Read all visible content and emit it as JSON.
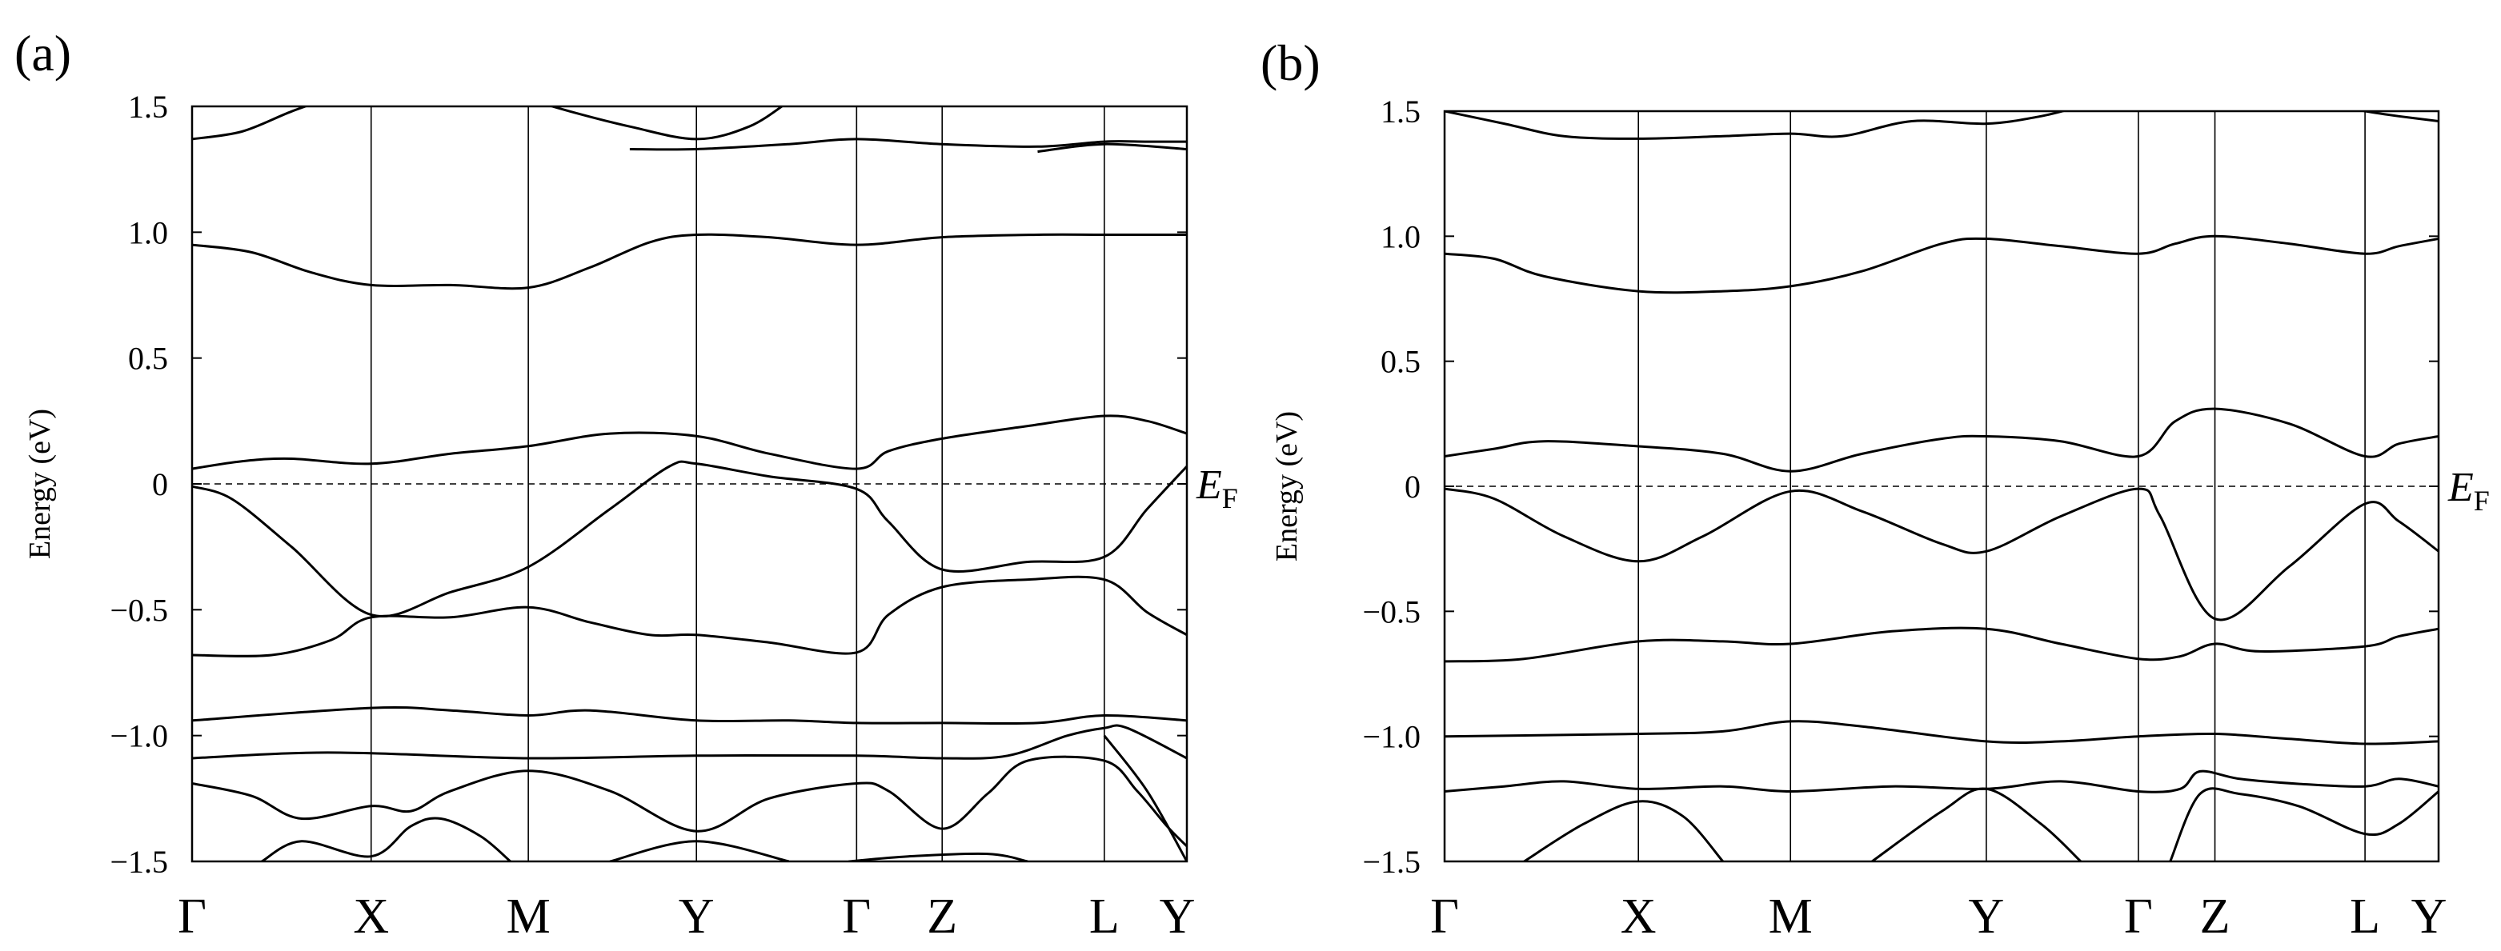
{
  "chart_data": [
    {
      "panel_label": "(a)",
      "type": "line",
      "ylabel": "Energy (eV)",
      "ylim": [
        -1.5,
        1.5
      ],
      "yticks": [
        -1.5,
        -1.0,
        -0.5,
        0,
        0.5,
        1.0,
        1.5
      ],
      "ytick_labels": [
        "−1.5",
        "−1.0",
        "−0.5",
        "0",
        "0.5",
        "1.0",
        "1.5"
      ],
      "kpoints": [
        "Γ",
        "X",
        "M",
        "Y",
        "Γ",
        "Z",
        "L",
        "Y"
      ],
      "kpoint_positions": [
        0,
        0.18,
        0.338,
        0.507,
        0.668,
        0.754,
        0.917,
        1.0
      ],
      "fermi_level": 0,
      "fermi_label": "E",
      "fermi_sub": "F",
      "series": [
        {
          "name": "band_above_1",
          "x": [
            0,
            0.05,
            0.1,
            0.15
          ],
          "y": [
            1.37,
            1.4,
            1.48,
            1.55
          ]
        },
        {
          "name": "band_above_2",
          "x": [
            0.32,
            0.38,
            0.44,
            0.507,
            0.56,
            0.6
          ],
          "y": [
            1.55,
            1.48,
            1.42,
            1.37,
            1.42,
            1.52
          ]
        },
        {
          "name": "band_above_3",
          "x": [
            0.44,
            0.507,
            0.6,
            0.668,
            0.754,
            0.85,
            0.917,
            0.96,
            1.0
          ],
          "y": [
            1.33,
            1.33,
            1.35,
            1.37,
            1.35,
            1.34,
            1.36,
            1.36,
            1.36
          ]
        },
        {
          "name": "band_above_4",
          "x": [
            0.85,
            0.917,
            1.0
          ],
          "y": [
            1.32,
            1.35,
            1.33
          ]
        },
        {
          "name": "band_c2",
          "x": [
            0,
            0.06,
            0.12,
            0.18,
            0.26,
            0.338,
            0.4,
            0.46,
            0.507,
            0.58,
            0.668,
            0.754,
            0.85,
            0.917,
            1.0
          ],
          "y": [
            0.95,
            0.92,
            0.84,
            0.79,
            0.79,
            0.78,
            0.86,
            0.96,
            0.99,
            0.98,
            0.95,
            0.98,
            0.99,
            0.99,
            0.99
          ]
        },
        {
          "name": "band_c1",
          "x": [
            0,
            0.05,
            0.1,
            0.18,
            0.26,
            0.338,
            0.42,
            0.507,
            0.58,
            0.668,
            0.7,
            0.754,
            0.84,
            0.917,
            0.96,
            1.0
          ],
          "y": [
            0.06,
            0.09,
            0.1,
            0.08,
            0.12,
            0.15,
            0.2,
            0.19,
            0.12,
            0.06,
            0.13,
            0.18,
            0.23,
            0.27,
            0.25,
            0.2
          ]
        },
        {
          "name": "band_v1",
          "x": [
            0,
            0.04,
            0.1,
            0.18,
            0.26,
            0.338,
            0.42,
            0.48,
            0.507,
            0.58,
            0.668,
            0.7,
            0.754,
            0.84,
            0.917,
            0.96,
            1.0
          ],
          "y": [
            -0.01,
            -0.06,
            -0.25,
            -0.52,
            -0.43,
            -0.33,
            -0.1,
            0.07,
            0.08,
            0.03,
            -0.02,
            -0.15,
            -0.34,
            -0.31,
            -0.29,
            -0.1,
            0.07
          ]
        },
        {
          "name": "band_v2",
          "x": [
            0,
            0.08,
            0.14,
            0.18,
            0.26,
            0.338,
            0.4,
            0.46,
            0.507,
            0.58,
            0.668,
            0.7,
            0.754,
            0.84,
            0.917,
            0.96,
            1.0
          ],
          "y": [
            -0.68,
            -0.68,
            -0.62,
            -0.53,
            -0.53,
            -0.49,
            -0.55,
            -0.6,
            -0.6,
            -0.63,
            -0.67,
            -0.52,
            -0.41,
            -0.38,
            -0.38,
            -0.51,
            -0.6
          ]
        },
        {
          "name": "band_v3",
          "x": [
            0,
            0.18,
            0.26,
            0.338,
            0.4,
            0.507,
            0.6,
            0.668,
            0.754,
            0.85,
            0.917,
            1.0
          ],
          "y": [
            -0.94,
            -0.89,
            -0.9,
            -0.92,
            -0.9,
            -0.94,
            -0.94,
            -0.95,
            -0.95,
            -0.95,
            -0.92,
            -0.94
          ]
        },
        {
          "name": "band_v4",
          "x": [
            0,
            0.1,
            0.18,
            0.338,
            0.507,
            0.668,
            0.754,
            0.82,
            0.88,
            0.917,
            0.94,
            1.0
          ],
          "y": [
            -1.09,
            -1.07,
            -1.07,
            -1.09,
            -1.08,
            -1.08,
            -1.09,
            -1.08,
            -1.0,
            -0.97,
            -0.97,
            -1.09
          ]
        },
        {
          "name": "band_v5",
          "x": [
            0,
            0.06,
            0.11,
            0.18,
            0.22,
            0.26,
            0.338,
            0.42,
            0.507,
            0.58,
            0.668,
            0.7,
            0.754,
            0.8,
            0.84,
            0.917,
            0.95,
            0.98,
            1.0
          ],
          "y": [
            -1.19,
            -1.24,
            -1.33,
            -1.28,
            -1.3,
            -1.22,
            -1.14,
            -1.22,
            -1.38,
            -1.25,
            -1.19,
            -1.22,
            -1.37,
            -1.23,
            -1.1,
            -1.1,
            -1.22,
            -1.36,
            -1.44
          ]
        },
        {
          "name": "band_v6",
          "x": [
            0.07,
            0.11,
            0.18,
            0.22,
            0.25,
            0.29,
            0.32
          ],
          "y": [
            -1.5,
            -1.42,
            -1.48,
            -1.36,
            -1.33,
            -1.4,
            -1.5
          ]
        },
        {
          "name": "band_v7",
          "x": [
            0.42,
            0.507,
            0.6
          ],
          "y": [
            -1.5,
            -1.42,
            -1.5
          ]
        },
        {
          "name": "band_v8",
          "x": [
            0.66,
            0.72,
            0.8,
            0.84
          ],
          "y": [
            -1.5,
            -1.48,
            -1.47,
            -1.5
          ]
        },
        {
          "name": "band_v9",
          "x": [
            0.917,
            0.96,
            1.0
          ],
          "y": [
            -1.0,
            -1.22,
            -1.5
          ]
        }
      ]
    },
    {
      "panel_label": "(b)",
      "type": "line",
      "ylabel": "Energy (eV)",
      "ylim": [
        -1.5,
        1.5
      ],
      "yticks": [
        -1.5,
        -1.0,
        -0.5,
        0,
        0.5,
        1.0,
        1.5
      ],
      "ytick_labels": [
        "−1.5",
        "−1.0",
        "−0.5",
        "0",
        "0.5",
        "1.0",
        "1.5"
      ],
      "kpoints": [
        "Γ",
        "X",
        "M",
        "Y",
        "Γ",
        "Z",
        "L",
        "Y"
      ],
      "kpoint_positions": [
        0,
        0.195,
        0.348,
        0.545,
        0.698,
        0.775,
        0.926,
        1.0
      ],
      "fermi_level": 0,
      "fermi_label": "E",
      "fermi_sub": "F",
      "series": [
        {
          "name": "band_c3",
          "x": [
            0,
            0.06,
            0.12,
            0.195,
            0.28,
            0.348,
            0.4,
            0.47,
            0.545,
            0.6,
            0.64
          ],
          "y": [
            1.5,
            1.45,
            1.4,
            1.39,
            1.4,
            1.41,
            1.4,
            1.46,
            1.45,
            1.48,
            1.52
          ]
        },
        {
          "name": "band_c3b",
          "x": [
            0.9,
            0.926,
            0.96,
            1.0
          ],
          "y": [
            1.52,
            1.5,
            1.48,
            1.46
          ]
        },
        {
          "name": "band_c2",
          "x": [
            0,
            0.05,
            0.1,
            0.195,
            0.28,
            0.348,
            0.42,
            0.5,
            0.545,
            0.62,
            0.698,
            0.735,
            0.775,
            0.85,
            0.926,
            0.96,
            1.0
          ],
          "y": [
            0.93,
            0.91,
            0.84,
            0.78,
            0.78,
            0.8,
            0.86,
            0.97,
            0.99,
            0.96,
            0.93,
            0.97,
            1.0,
            0.97,
            0.93,
            0.96,
            0.99
          ]
        },
        {
          "name": "band_c1",
          "x": [
            0,
            0.05,
            0.1,
            0.195,
            0.28,
            0.348,
            0.42,
            0.5,
            0.545,
            0.62,
            0.698,
            0.735,
            0.775,
            0.85,
            0.926,
            0.96,
            1.0
          ],
          "y": [
            0.12,
            0.15,
            0.18,
            0.16,
            0.13,
            0.06,
            0.13,
            0.19,
            0.2,
            0.18,
            0.12,
            0.26,
            0.31,
            0.25,
            0.12,
            0.17,
            0.2
          ]
        },
        {
          "name": "band_v1",
          "x": [
            0,
            0.05,
            0.12,
            0.195,
            0.26,
            0.348,
            0.42,
            0.5,
            0.545,
            0.62,
            0.698,
            0.72,
            0.775,
            0.85,
            0.926,
            0.96,
            1.0
          ],
          "y": [
            -0.01,
            -0.05,
            -0.2,
            -0.3,
            -0.2,
            -0.02,
            -0.1,
            -0.23,
            -0.26,
            -0.12,
            -0.01,
            -0.12,
            -0.53,
            -0.32,
            -0.07,
            -0.14,
            -0.26
          ]
        },
        {
          "name": "band_v2",
          "x": [
            0,
            0.08,
            0.195,
            0.28,
            0.348,
            0.45,
            0.545,
            0.62,
            0.698,
            0.74,
            0.775,
            0.82,
            0.926,
            0.96,
            1.0
          ],
          "y": [
            -0.7,
            -0.69,
            -0.62,
            -0.62,
            -0.63,
            -0.58,
            -0.57,
            -0.63,
            -0.69,
            -0.68,
            -0.63,
            -0.66,
            -0.64,
            -0.6,
            -0.57
          ]
        },
        {
          "name": "band_v3",
          "x": [
            0,
            0.195,
            0.28,
            0.348,
            0.42,
            0.545,
            0.62,
            0.698,
            0.775,
            0.85,
            0.926,
            1.0
          ],
          "y": [
            -1.0,
            -0.99,
            -0.98,
            -0.94,
            -0.96,
            -1.02,
            -1.02,
            -1.0,
            -0.99,
            -1.01,
            -1.03,
            -1.02
          ]
        },
        {
          "name": "band_v4",
          "x": [
            0,
            0.06,
            0.12,
            0.195,
            0.28,
            0.348,
            0.45,
            0.545,
            0.62,
            0.698,
            0.74,
            0.76,
            0.8,
            0.86,
            0.926,
            0.96,
            1.0
          ],
          "y": [
            -1.22,
            -1.2,
            -1.18,
            -1.21,
            -1.2,
            -1.22,
            -1.2,
            -1.21,
            -1.18,
            -1.22,
            -1.21,
            -1.14,
            -1.17,
            -1.19,
            -1.2,
            -1.17,
            -1.2
          ]
        },
        {
          "name": "band_v5",
          "x": [
            0.08,
            0.14,
            0.195,
            0.24,
            0.28
          ],
          "y": [
            -1.5,
            -1.35,
            -1.26,
            -1.32,
            -1.5
          ]
        },
        {
          "name": "band_v6",
          "x": [
            0.43,
            0.5,
            0.545,
            0.6,
            0.64
          ],
          "y": [
            -1.5,
            -1.3,
            -1.21,
            -1.35,
            -1.5
          ]
        },
        {
          "name": "band_v7",
          "x": [
            0.73,
            0.76,
            0.8,
            0.86,
            0.926,
            0.96,
            1.0
          ],
          "y": [
            -1.5,
            -1.23,
            -1.23,
            -1.28,
            -1.39,
            -1.35,
            -1.22
          ]
        }
      ]
    }
  ]
}
